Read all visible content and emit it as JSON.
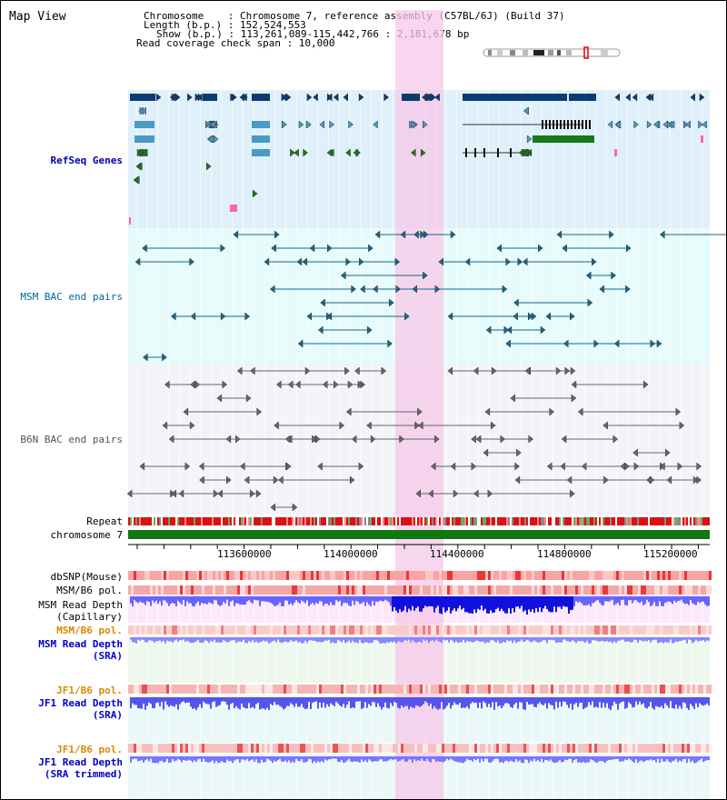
{
  "title": "Map View",
  "info": {
    "chromosome_line": "Chromosome    : Chromosome 7, reference assembly (C57BL/6J) (Build 37)",
    "length_line": "Length (b.p.) : 152,524,553",
    "show_line": "Show (b.p.) : 113,261,089-115,442,766 : 2,181,678 bp",
    "read_line": "Read coverage check span : 10,000"
  },
  "tracks": {
    "refseq": "RefSeq Genes",
    "msm_bac": "MSM BAC end pairs",
    "b6n_bac": "B6N BAC end pairs",
    "repeat": "Repeat",
    "chromosome": "chromosome 7",
    "dbsnp": "dbSNP(Mouse)",
    "msm_pol": "MSM/B6 pol.",
    "msm_depth_cap_1": "MSM Read Depth",
    "msm_depth_cap_2": "(Capillary)",
    "msm_pol_sra": "MSM/B6 pol.",
    "msm_depth_sra_1": "MSM Read Depth",
    "msm_depth_sra_2": "(SRA)",
    "jf1_pol": "JF1/B6 pol.",
    "jf1_depth_1": "JF1 Read Depth",
    "jf1_depth_2": "(SRA)",
    "jf1_pol_trim": "JF1/B6 pol.",
    "jf1_trim_1": "JF1 Read Depth",
    "jf1_trim_2": "(SRA trimmed)"
  },
  "ruler": {
    "ticks": [
      "113600000",
      "114000000",
      "114400000",
      "114800000",
      "115200000"
    ]
  },
  "colors": {
    "refseq_bg": "#dff0fa",
    "msm_bg": "#e6fbfb",
    "b6n_bg": "#f2f4f8",
    "highlight": "#f7c8ea",
    "gene_dark": "#0b3b72",
    "gene_mid": "#4a9ac4",
    "gene_green": "#1a7a1a",
    "chromosome_bar": "#117711"
  }
}
